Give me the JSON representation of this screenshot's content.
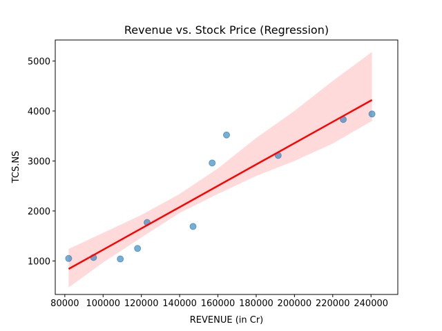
{
  "chart_data": {
    "type": "scatter",
    "title": "Revenue vs. Stock Price (Regression)",
    "xlabel": "REVENUE (in Cr)",
    "ylabel": "TCS.NS",
    "xlim": [
      75000,
      254000
    ],
    "ylim": [
      330,
      5420
    ],
    "xticks": [
      80000,
      100000,
      120000,
      140000,
      160000,
      180000,
      200000,
      220000,
      240000
    ],
    "yticks": [
      1000,
      2000,
      3000,
      4000,
      5000
    ],
    "grid": false,
    "points": [
      {
        "x": 82000,
        "y": 1050
      },
      {
        "x": 95000,
        "y": 1070
      },
      {
        "x": 109000,
        "y": 1040
      },
      {
        "x": 118000,
        "y": 1250
      },
      {
        "x": 123000,
        "y": 1770
      },
      {
        "x": 147000,
        "y": 1690
      },
      {
        "x": 157000,
        "y": 2960
      },
      {
        "x": 164500,
        "y": 3520
      },
      {
        "x": 191500,
        "y": 3110
      },
      {
        "x": 225500,
        "y": 3830
      },
      {
        "x": 240500,
        "y": 3940
      }
    ],
    "regression_line": [
      {
        "x": 82000,
        "y": 840
      },
      {
        "x": 240500,
        "y": 4220
      }
    ],
    "confidence_band": [
      {
        "x": 82000,
        "lower": 470,
        "upper": 1240
      },
      {
        "x": 100000,
        "lower": 970,
        "upper": 1560
      },
      {
        "x": 120000,
        "lower": 1470,
        "upper": 1920
      },
      {
        "x": 140000,
        "lower": 1960,
        "upper": 2340
      },
      {
        "x": 160000,
        "lower": 2340,
        "upper": 2850
      },
      {
        "x": 180000,
        "lower": 2700,
        "upper": 3460
      },
      {
        "x": 200000,
        "lower": 3000,
        "upper": 4000
      },
      {
        "x": 220000,
        "lower": 3350,
        "upper": 4600
      },
      {
        "x": 240500,
        "lower": 3800,
        "upper": 5180
      }
    ],
    "colors": {
      "points": "#1f77b4",
      "regression": "#ff0000",
      "band": "#ffd6d6"
    }
  }
}
